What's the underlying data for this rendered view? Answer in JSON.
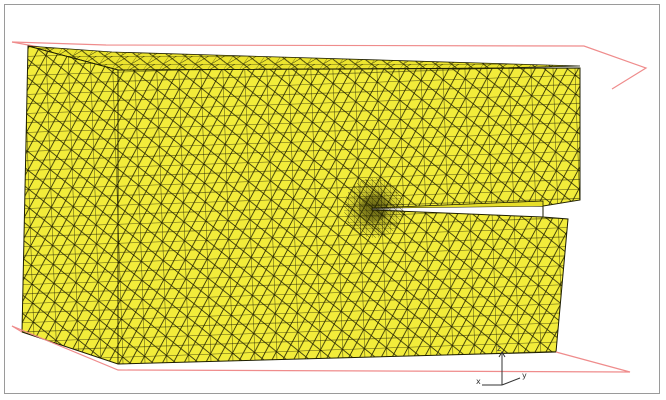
{
  "viewport": {
    "caption": "",
    "colors": {
      "background": "#ffffff",
      "frame_border": "#9a9a9a",
      "mesh_fill": "#f2ec3a",
      "mesh_fill_shaded": "#e7df2a",
      "mesh_edge": "#1e1e00",
      "boundary_plane": "#ef8c8c",
      "triad": "#333333"
    },
    "model": {
      "description_visible": false,
      "element_type": "triangular-surface-mesh",
      "features": [
        "block",
        "notch-crack",
        "refined-mesh-at-crack-tip"
      ]
    },
    "axis_triad": {
      "labels": [
        "z",
        "x",
        "y"
      ]
    }
  }
}
